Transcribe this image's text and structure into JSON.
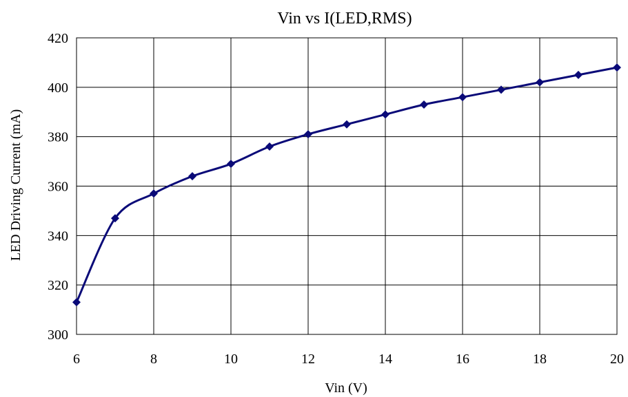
{
  "chart_data": {
    "type": "line",
    "title": "Vin vs I(LED,RMS)",
    "xlabel": "Vin (V)",
    "ylabel": "LED Driving Current (mA)",
    "xlim": [
      6,
      20
    ],
    "ylim": [
      300,
      420
    ],
    "xticks": [
      6,
      8,
      10,
      12,
      14,
      16,
      18,
      20
    ],
    "yticks": [
      300,
      320,
      340,
      360,
      380,
      400,
      420
    ],
    "grid": true,
    "legend": "none",
    "series": [
      {
        "color": "#0a0a78",
        "marker": "diamond",
        "x": [
          6,
          7,
          8,
          9,
          10,
          11,
          12,
          13,
          14,
          15,
          16,
          17,
          18,
          19,
          20
        ],
        "y": [
          313,
          347,
          357,
          364,
          369,
          376,
          381,
          385,
          389,
          393,
          396,
          399,
          402,
          405,
          408
        ]
      }
    ]
  }
}
